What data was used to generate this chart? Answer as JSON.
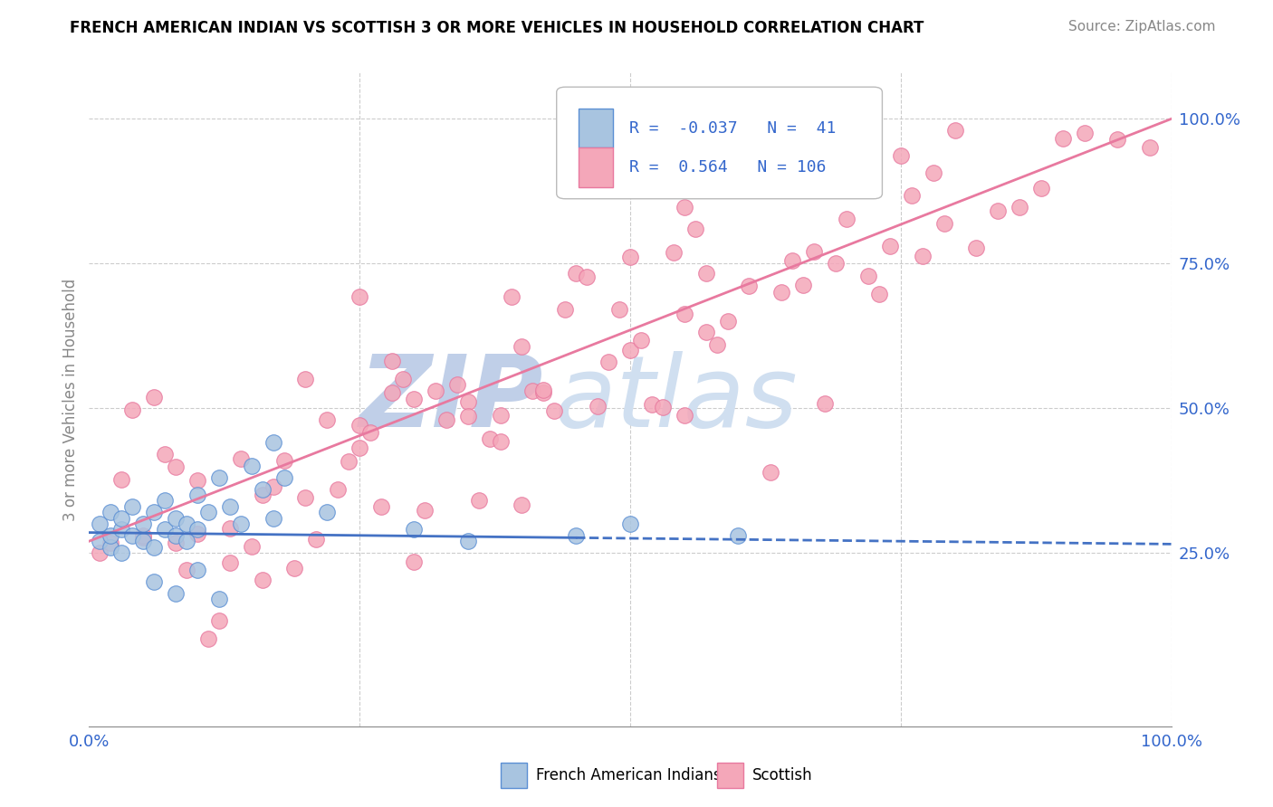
{
  "title": "FRENCH AMERICAN INDIAN VS SCOTTISH 3 OR MORE VEHICLES IN HOUSEHOLD CORRELATION CHART",
  "source": "Source: ZipAtlas.com",
  "ylabel": "3 or more Vehicles in Household",
  "xlim": [
    0,
    1.0
  ],
  "ylim": [
    -0.05,
    1.08
  ],
  "xtick_positions": [
    0.0,
    0.25,
    0.5,
    0.75,
    1.0
  ],
  "xticklabels": [
    "0.0%",
    "",
    "",
    "",
    "100.0%"
  ],
  "ytick_positions": [
    0.25,
    0.5,
    0.75,
    1.0
  ],
  "ytick_labels": [
    "25.0%",
    "50.0%",
    "75.0%",
    "100.0%"
  ],
  "blue_R": -0.037,
  "blue_N": 41,
  "pink_R": 0.564,
  "pink_N": 106,
  "blue_dot_color": "#a8c4e0",
  "blue_dot_edge": "#5b8fd4",
  "blue_line_color": "#4472c4",
  "pink_dot_color": "#f4a7b9",
  "pink_dot_edge": "#e8799f",
  "pink_line_color": "#e8799f",
  "watermark_zip_color": "#c0cfe8",
  "watermark_atlas_color": "#d0dff0",
  "legend_label_blue": "French American Indians",
  "legend_label_pink": "Scottish",
  "title_fontsize": 12,
  "source_fontsize": 11,
  "tick_fontsize": 13,
  "legend_fontsize": 13
}
